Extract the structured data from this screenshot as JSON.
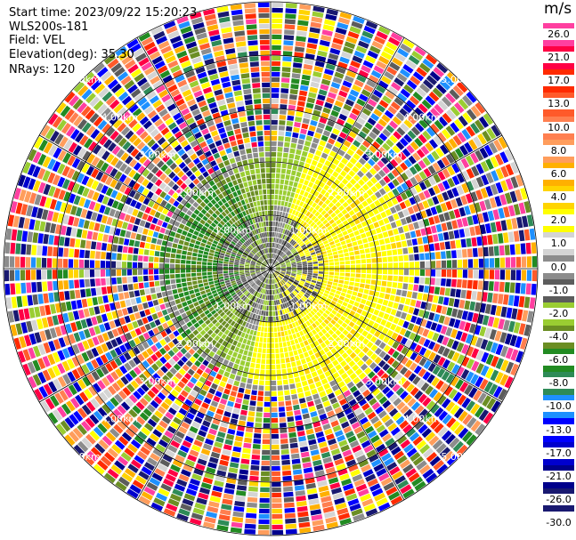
{
  "header": {
    "start_time": "Start time: 2023/09/22 15:20:23",
    "instrument": "WLS200s-181",
    "field": "Field: VEL",
    "elevation": "Elevation(deg): 35.30",
    "nrays": "NRays: 120"
  },
  "colorbar": {
    "unit": "m/s",
    "levels": [
      "26.0",
      "21.0",
      "17.0",
      "13.0",
      "10.0",
      "8.0",
      "6.0",
      "4.0",
      "2.0",
      "1.0",
      "0.0",
      "-1.0",
      "-2.0",
      "-4.0",
      "-6.0",
      "-8.0",
      "-10.0",
      "-13.0",
      "-17.0",
      "-21.0",
      "-26.0",
      "-30.0"
    ],
    "colors": [
      "#ff3fa0",
      "#ff0044",
      "#ff2a00",
      "#ff5a2a",
      "#ff7f50",
      "#ff9d5c",
      "#ffb000",
      "#ffd400",
      "#ffff00",
      "#d4d4d4",
      "#8c8c8c",
      "#5c5c5c",
      "#9acd32",
      "#6b8e23",
      "#228b22",
      "#2e8b57",
      "#1e90ff",
      "#0000ff",
      "#0000cd",
      "#00008b",
      "#191970"
    ]
  },
  "range_rings": [
    {
      "label": "1.00km",
      "km": 1
    },
    {
      "label": "2.00km",
      "km": 2
    },
    {
      "label": "3.00km",
      "km": 3
    },
    {
      "label": "4.00km",
      "km": 4
    },
    {
      "label": "5.00km",
      "km": 5
    }
  ]
}
